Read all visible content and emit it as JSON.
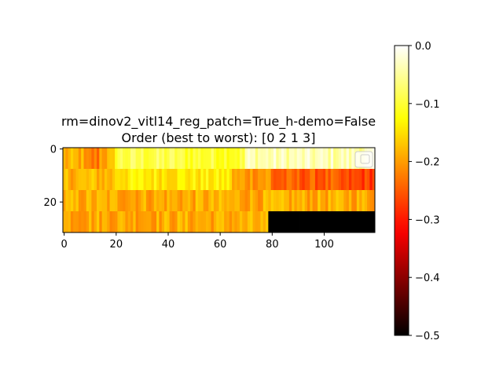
{
  "chart_data": {
    "type": "heatmap",
    "title_lines": [
      "rm=dinov2_vitl14_reg_patch=True_h-demo=False",
      "Order (best to worst): [0 2 1 3]"
    ],
    "colormap": "hot",
    "color_range": [
      -0.5,
      0.0
    ],
    "x_range": [
      -0.5,
      119.5
    ],
    "y_range": [
      31.5,
      -0.5
    ],
    "x_ticks": [
      0,
      20,
      40,
      60,
      80,
      100
    ],
    "y_ticks": [
      0,
      20
    ],
    "colorbar_ticks": [
      0.0,
      -0.1,
      -0.2,
      -0.3,
      -0.4,
      -0.5
    ],
    "colorbar_tick_labels": [
      "0.0",
      "−0.1",
      "−0.2",
      "−0.3",
      "−0.4",
      "−0.5"
    ],
    "legend": "top-right, empty",
    "rows": [
      {
        "name": "0",
        "y_start": 0,
        "y_end": 8,
        "columns": 120,
        "segments": [
          {
            "x": [
              0,
              20
            ],
            "value": -0.19
          },
          {
            "x": [
              8,
              14
            ],
            "value": -0.23
          },
          {
            "x": [
              20,
              45
            ],
            "value": -0.09
          },
          {
            "x": [
              45,
              70
            ],
            "value": -0.1
          },
          {
            "x": [
              70,
              120
            ],
            "value": -0.04
          }
        ]
      },
      {
        "name": "2",
        "y_start": 8,
        "y_end": 16,
        "columns": 120,
        "segments": [
          {
            "x": [
              0,
              20
            ],
            "value": -0.18
          },
          {
            "x": [
              20,
              65
            ],
            "value": -0.14
          },
          {
            "x": [
              65,
              80
            ],
            "value": -0.2
          },
          {
            "x": [
              80,
              105
            ],
            "value": -0.25
          },
          {
            "x": [
              105,
              120
            ],
            "value": -0.27
          }
        ]
      },
      {
        "name": "1",
        "y_start": 16,
        "y_end": 24,
        "columns": 120,
        "segments": [
          {
            "x": [
              0,
              120
            ],
            "value": -0.19
          }
        ]
      },
      {
        "name": "3",
        "y_start": 24,
        "y_end": 32,
        "columns": 120,
        "segments": [
          {
            "x": [
              0,
              79
            ],
            "value": -0.19
          },
          {
            "x": [
              79,
              120
            ],
            "value": -0.5
          }
        ]
      }
    ]
  }
}
